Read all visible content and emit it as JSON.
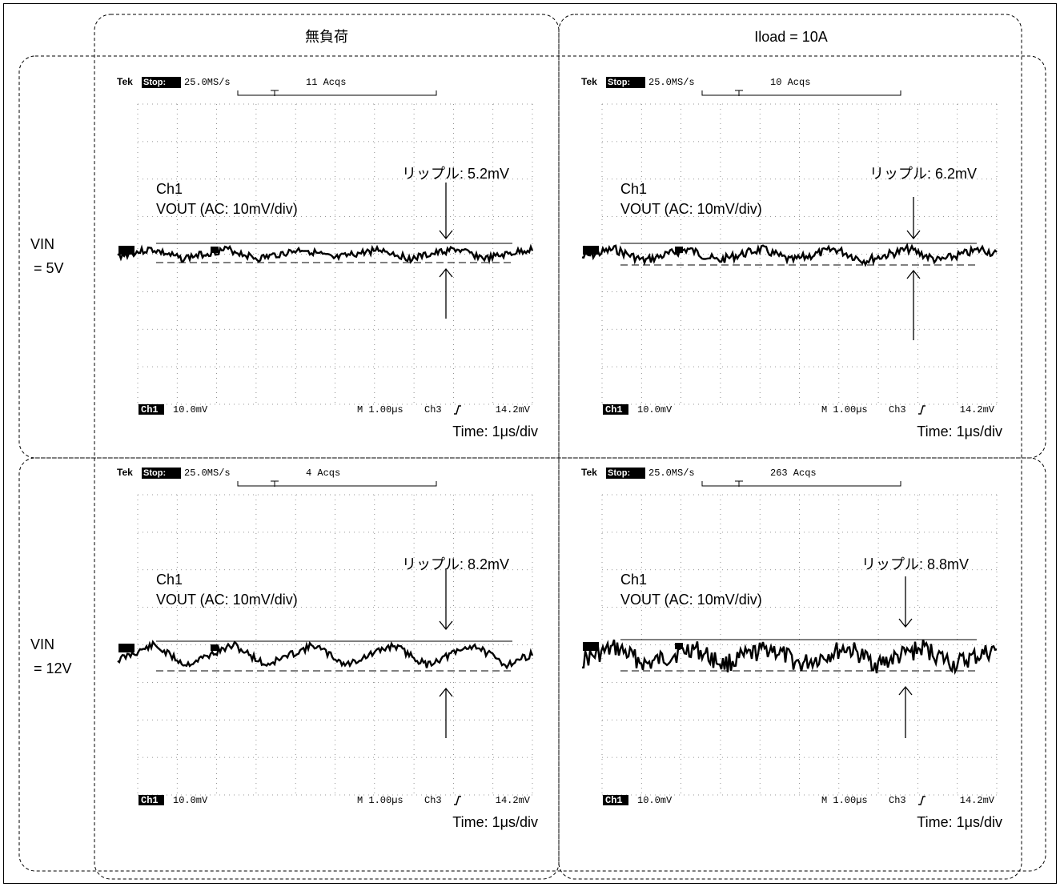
{
  "column_headers": [
    "無負荷",
    "Iload = 10A"
  ],
  "row_headers": [
    [
      "VIN",
      "= 5V"
    ],
    [
      "VIN",
      "= 12V"
    ]
  ],
  "panels": [
    {
      "tek": "Tek",
      "status": "Stop:",
      "sample_rate": "25.0MS/s",
      "acqs": "11 Acqs",
      "channel": "Ch1",
      "signal": "VOUT (AC: 10mV/div)",
      "ripple": "リップル: 5.2mV",
      "scale_channel": "Ch1",
      "scale": "10.0mV",
      "timebase": "M 1.00µs",
      "trigger_source": "Ch3",
      "trigger_level": "14.2mV",
      "time_label": "Time: 1μs/div"
    },
    {
      "tek": "Tek",
      "status": "Stop:",
      "sample_rate": "25.0MS/s",
      "acqs": "10 Acqs",
      "channel": "Ch1",
      "signal": "VOUT (AC: 10mV/div)",
      "ripple": "リップル: 6.2mV",
      "scale_channel": "Ch1",
      "scale": "10.0mV",
      "timebase": "M 1.00µs",
      "trigger_source": "Ch3",
      "trigger_level": "14.2mV",
      "time_label": "Time: 1μs/div"
    },
    {
      "tek": "Tek",
      "status": "Stop:",
      "sample_rate": "25.0MS/s",
      "acqs": "4 Acqs",
      "channel": "Ch1",
      "signal": "VOUT (AC: 10mV/div)",
      "ripple": "リップル: 8.2mV",
      "scale_channel": "Ch1",
      "scale": "10.0mV",
      "timebase": "M 1.00µs",
      "trigger_source": "Ch3",
      "trigger_level": "14.2mV",
      "time_label": "Time: 1μs/div"
    },
    {
      "tek": "Tek",
      "status": "Stop:",
      "sample_rate": "25.0MS/s",
      "acqs": "263 Acqs",
      "channel": "Ch1",
      "signal": "VOUT (AC: 10mV/div)",
      "ripple": "リップル: 8.8mV",
      "scale_channel": "Ch1",
      "scale": "10.0mV",
      "timebase": "M 1.00µs",
      "trigger_source": "Ch3",
      "trigger_level": "14.2mV",
      "time_label": "Time: 1μs/div"
    }
  ]
}
